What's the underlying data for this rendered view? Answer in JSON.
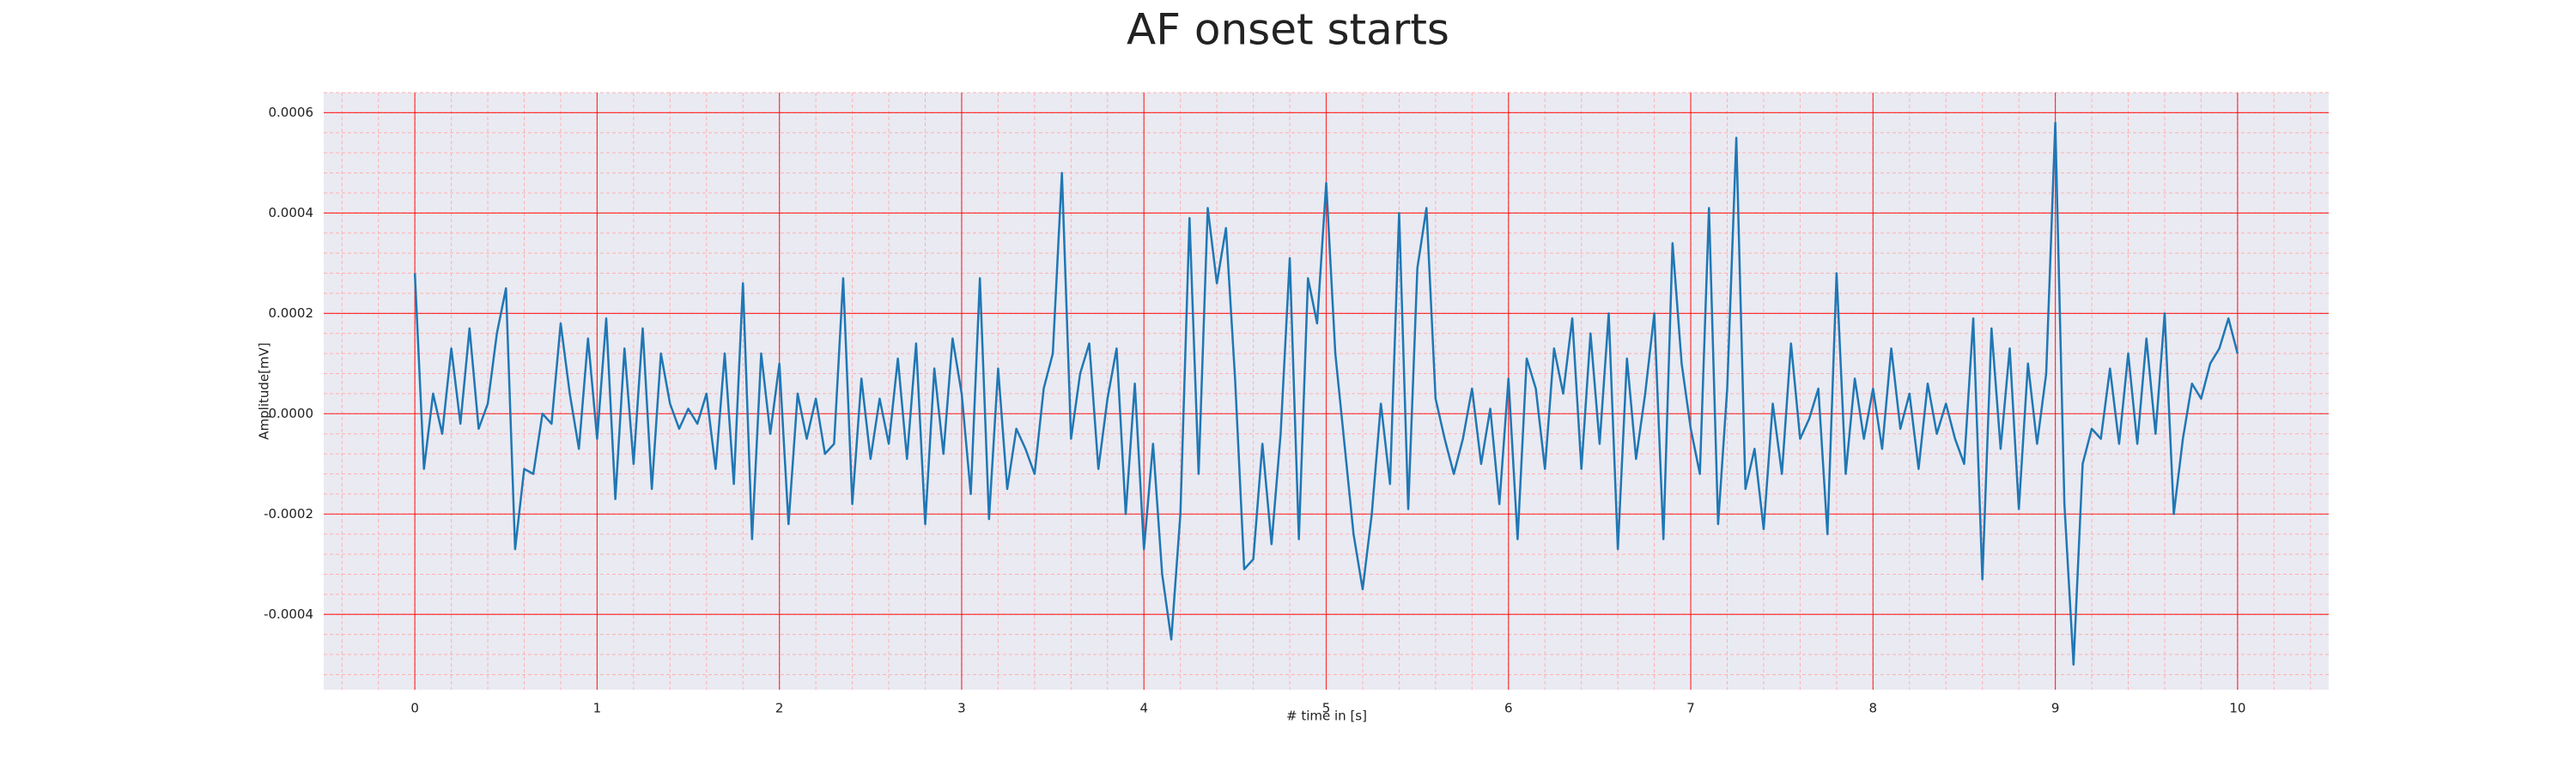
{
  "chart_data": {
    "type": "line",
    "title": "AF onset starts",
    "xlabel": "# time in [s]",
    "ylabel": "Amplitude[mV]",
    "color": "#1f77b4",
    "background": "#eaeaf2",
    "grid": true,
    "grid_color": "#ff0000",
    "minor_grid_color": "#ffb0b0",
    "xlim": [
      -0.5,
      10.5
    ],
    "ylim": [
      -0.00055,
      0.00064
    ],
    "xticks": [
      0,
      1,
      2,
      3,
      4,
      5,
      6,
      7,
      8,
      9,
      10
    ],
    "yticks": [
      {
        "value": -0.0004,
        "label": "-0.0004"
      },
      {
        "value": -0.0002,
        "label": "-0.0002"
      },
      {
        "value": 0,
        "label": "0.0000"
      },
      {
        "value": 0.0002,
        "label": "0.0002"
      },
      {
        "value": 0.0004,
        "label": "0.0004"
      },
      {
        "value": 0.0006,
        "label": "0.0006"
      }
    ],
    "minor_xticks": [
      -0.4,
      -0.2,
      0,
      0.2,
      0.4,
      0.6,
      0.8,
      1,
      1.2,
      1.4,
      1.6,
      1.8,
      2,
      2.2,
      2.4,
      2.6,
      2.8,
      3,
      3.2,
      3.4,
      3.6,
      3.8,
      4,
      4.2,
      4.4,
      4.6,
      4.8,
      5,
      5.2,
      5.4,
      5.6,
      5.8,
      6,
      6.2,
      6.4,
      6.6,
      6.8,
      7,
      7.2,
      7.4,
      7.6,
      7.8,
      8,
      8.2,
      8.4,
      8.6,
      8.8,
      9,
      9.2,
      9.4,
      9.6,
      9.8,
      10,
      10.2,
      10.4
    ],
    "minor_yticks": [
      -0.00052,
      -0.00048,
      -0.00044,
      -0.0004,
      -0.00036,
      -0.00032,
      -0.00028,
      -0.00024,
      -0.0002,
      -0.00016,
      -0.00012,
      -8e-05,
      -4e-05,
      0,
      4e-05,
      8e-05,
      0.00012,
      0.00016,
      0.0002,
      0.00024,
      0.00028,
      0.00032,
      0.00036,
      0.0004,
      0.00044,
      0.00048,
      0.00052,
      0.00056,
      0.0006,
      0.00064
    ],
    "x": [
      0,
      0.05,
      0.1,
      0.15,
      0.2,
      0.25,
      0.3,
      0.35,
      0.4,
      0.45,
      0.5,
      0.55,
      0.6,
      0.65,
      0.7,
      0.75,
      0.8,
      0.85,
      0.9,
      0.95,
      1,
      1.05,
      1.1,
      1.15,
      1.2,
      1.25,
      1.3,
      1.35,
      1.4,
      1.45,
      1.5,
      1.55,
      1.6,
      1.65,
      1.7,
      1.75,
      1.8,
      1.85,
      1.9,
      1.95,
      2,
      2.05,
      2.1,
      2.15,
      2.2,
      2.25,
      2.3,
      2.35,
      2.4,
      2.45,
      2.5,
      2.55,
      2.6,
      2.65,
      2.7,
      2.75,
      2.8,
      2.85,
      2.9,
      2.95,
      3,
      3.05,
      3.1,
      3.15,
      3.2,
      3.25,
      3.3,
      3.35,
      3.4,
      3.45,
      3.5,
      3.55,
      3.6,
      3.65,
      3.7,
      3.75,
      3.8,
      3.85,
      3.9,
      3.95,
      4,
      4.05,
      4.1,
      4.15,
      4.2,
      4.25,
      4.3,
      4.35,
      4.4,
      4.45,
      4.5,
      4.55,
      4.6,
      4.65,
      4.7,
      4.75,
      4.8,
      4.85,
      4.9,
      4.95,
      5,
      5.05,
      5.1,
      5.15,
      5.2,
      5.25,
      5.3,
      5.35,
      5.4,
      5.45,
      5.5,
      5.55,
      5.6,
      5.65,
      5.7,
      5.75,
      5.8,
      5.85,
      5.9,
      5.95,
      6,
      6.05,
      6.1,
      6.15,
      6.2,
      6.25,
      6.3,
      6.35,
      6.4,
      6.45,
      6.5,
      6.55,
      6.6,
      6.65,
      6.7,
      6.75,
      6.8,
      6.85,
      6.9,
      6.95,
      7,
      7.05,
      7.1,
      7.15,
      7.2,
      7.25,
      7.3,
      7.35,
      7.4,
      7.45,
      7.5,
      7.55,
      7.6,
      7.65,
      7.7,
      7.75,
      7.8,
      7.85,
      7.9,
      7.95,
      8,
      8.05,
      8.1,
      8.15,
      8.2,
      8.25,
      8.3,
      8.35,
      8.4,
      8.45,
      8.5,
      8.55,
      8.6,
      8.65,
      8.7,
      8.75,
      8.8,
      8.85,
      8.9,
      8.95,
      9,
      9.05,
      9.1,
      9.15,
      9.2,
      9.25,
      9.3,
      9.35,
      9.4,
      9.45,
      9.5,
      9.55,
      9.6,
      9.65,
      9.7,
      9.75,
      9.8,
      9.85,
      9.9,
      9.95,
      10
    ],
    "values": [
      0.00028,
      -0.00011,
      4e-05,
      -4e-05,
      0.00013,
      -2e-05,
      0.00017,
      -3e-05,
      2e-05,
      0.00016,
      0.00025,
      -0.00027,
      -0.00011,
      -0.00012,
      0,
      -2e-05,
      0.00018,
      4e-05,
      -7e-05,
      0.00015,
      -5e-05,
      0.00019,
      -0.00017,
      0.00013,
      -0.0001,
      0.00017,
      -0.00015,
      0.00012,
      2e-05,
      -3e-05,
      1e-05,
      -2e-05,
      4e-05,
      -0.00011,
      0.00012,
      -0.00014,
      0.00026,
      -0.00025,
      0.00012,
      -4e-05,
      0.0001,
      -0.00022,
      4e-05,
      -5e-05,
      3e-05,
      -8e-05,
      -6e-05,
      0.00027,
      -0.00018,
      7e-05,
      -9e-05,
      3e-05,
      -6e-05,
      0.00011,
      -9e-05,
      0.00014,
      -0.00022,
      9e-05,
      -8e-05,
      0.00015,
      4e-05,
      -0.00016,
      0.00027,
      -0.00021,
      9e-05,
      -0.00015,
      -3e-05,
      -7e-05,
      -0.00012,
      5e-05,
      0.00012,
      0.00048,
      -5e-05,
      8e-05,
      0.00014,
      -0.00011,
      3e-05,
      0.00013,
      -0.0002,
      6e-05,
      -0.00027,
      -6e-05,
      -0.00032,
      -0.00045,
      -0.0002,
      0.00039,
      -0.00012,
      0.00041,
      0.00026,
      0.00037,
      7e-05,
      -0.00031,
      -0.00029,
      -6e-05,
      -0.00026,
      -4e-05,
      0.00031,
      -0.00025,
      0.00027,
      0.00018,
      0.00046,
      0.00012,
      -6e-05,
      -0.00024,
      -0.00035,
      -0.0002,
      2e-05,
      -0.00014,
      0.0004,
      -0.00019,
      0.00029,
      0.00041,
      3e-05,
      -5e-05,
      -0.00012,
      -5e-05,
      5e-05,
      -0.0001,
      1e-05,
      -0.00018,
      7e-05,
      -0.00025,
      0.00011,
      5e-05,
      -0.00011,
      0.00013,
      4e-05,
      0.00019,
      -0.00011,
      0.00016,
      -6e-05,
      0.0002,
      -0.00027,
      0.00011,
      -9e-05,
      4e-05,
      0.0002,
      -0.00025,
      0.00034,
      0.0001,
      -3e-05,
      -0.00012,
      0.00041,
      -0.00022,
      5e-05,
      0.00055,
      -0.00015,
      -7e-05,
      -0.00023,
      2e-05,
      -0.00012,
      0.00014,
      -5e-05,
      -1e-05,
      5e-05,
      -0.00024,
      0.00028,
      -0.00012,
      7e-05,
      -5e-05,
      5e-05,
      -7e-05,
      0.00013,
      -3e-05,
      4e-05,
      -0.00011,
      6e-05,
      -4e-05,
      2e-05,
      -5e-05,
      -0.0001,
      0.00019,
      -0.00033,
      0.00017,
      -7e-05,
      0.00013,
      -0.00019,
      0.0001,
      -6e-05,
      8e-05,
      0.00058,
      -0.00018,
      -0.0005,
      -0.0001,
      -3e-05,
      -5e-05,
      9e-05,
      -6e-05,
      0.00012,
      -6e-05,
      0.00015,
      -4e-05,
      0.0002,
      -0.0002,
      -5e-05,
      6e-05,
      3e-05,
      0.0001,
      0.00013,
      0.00019,
      0.00012
    ]
  }
}
